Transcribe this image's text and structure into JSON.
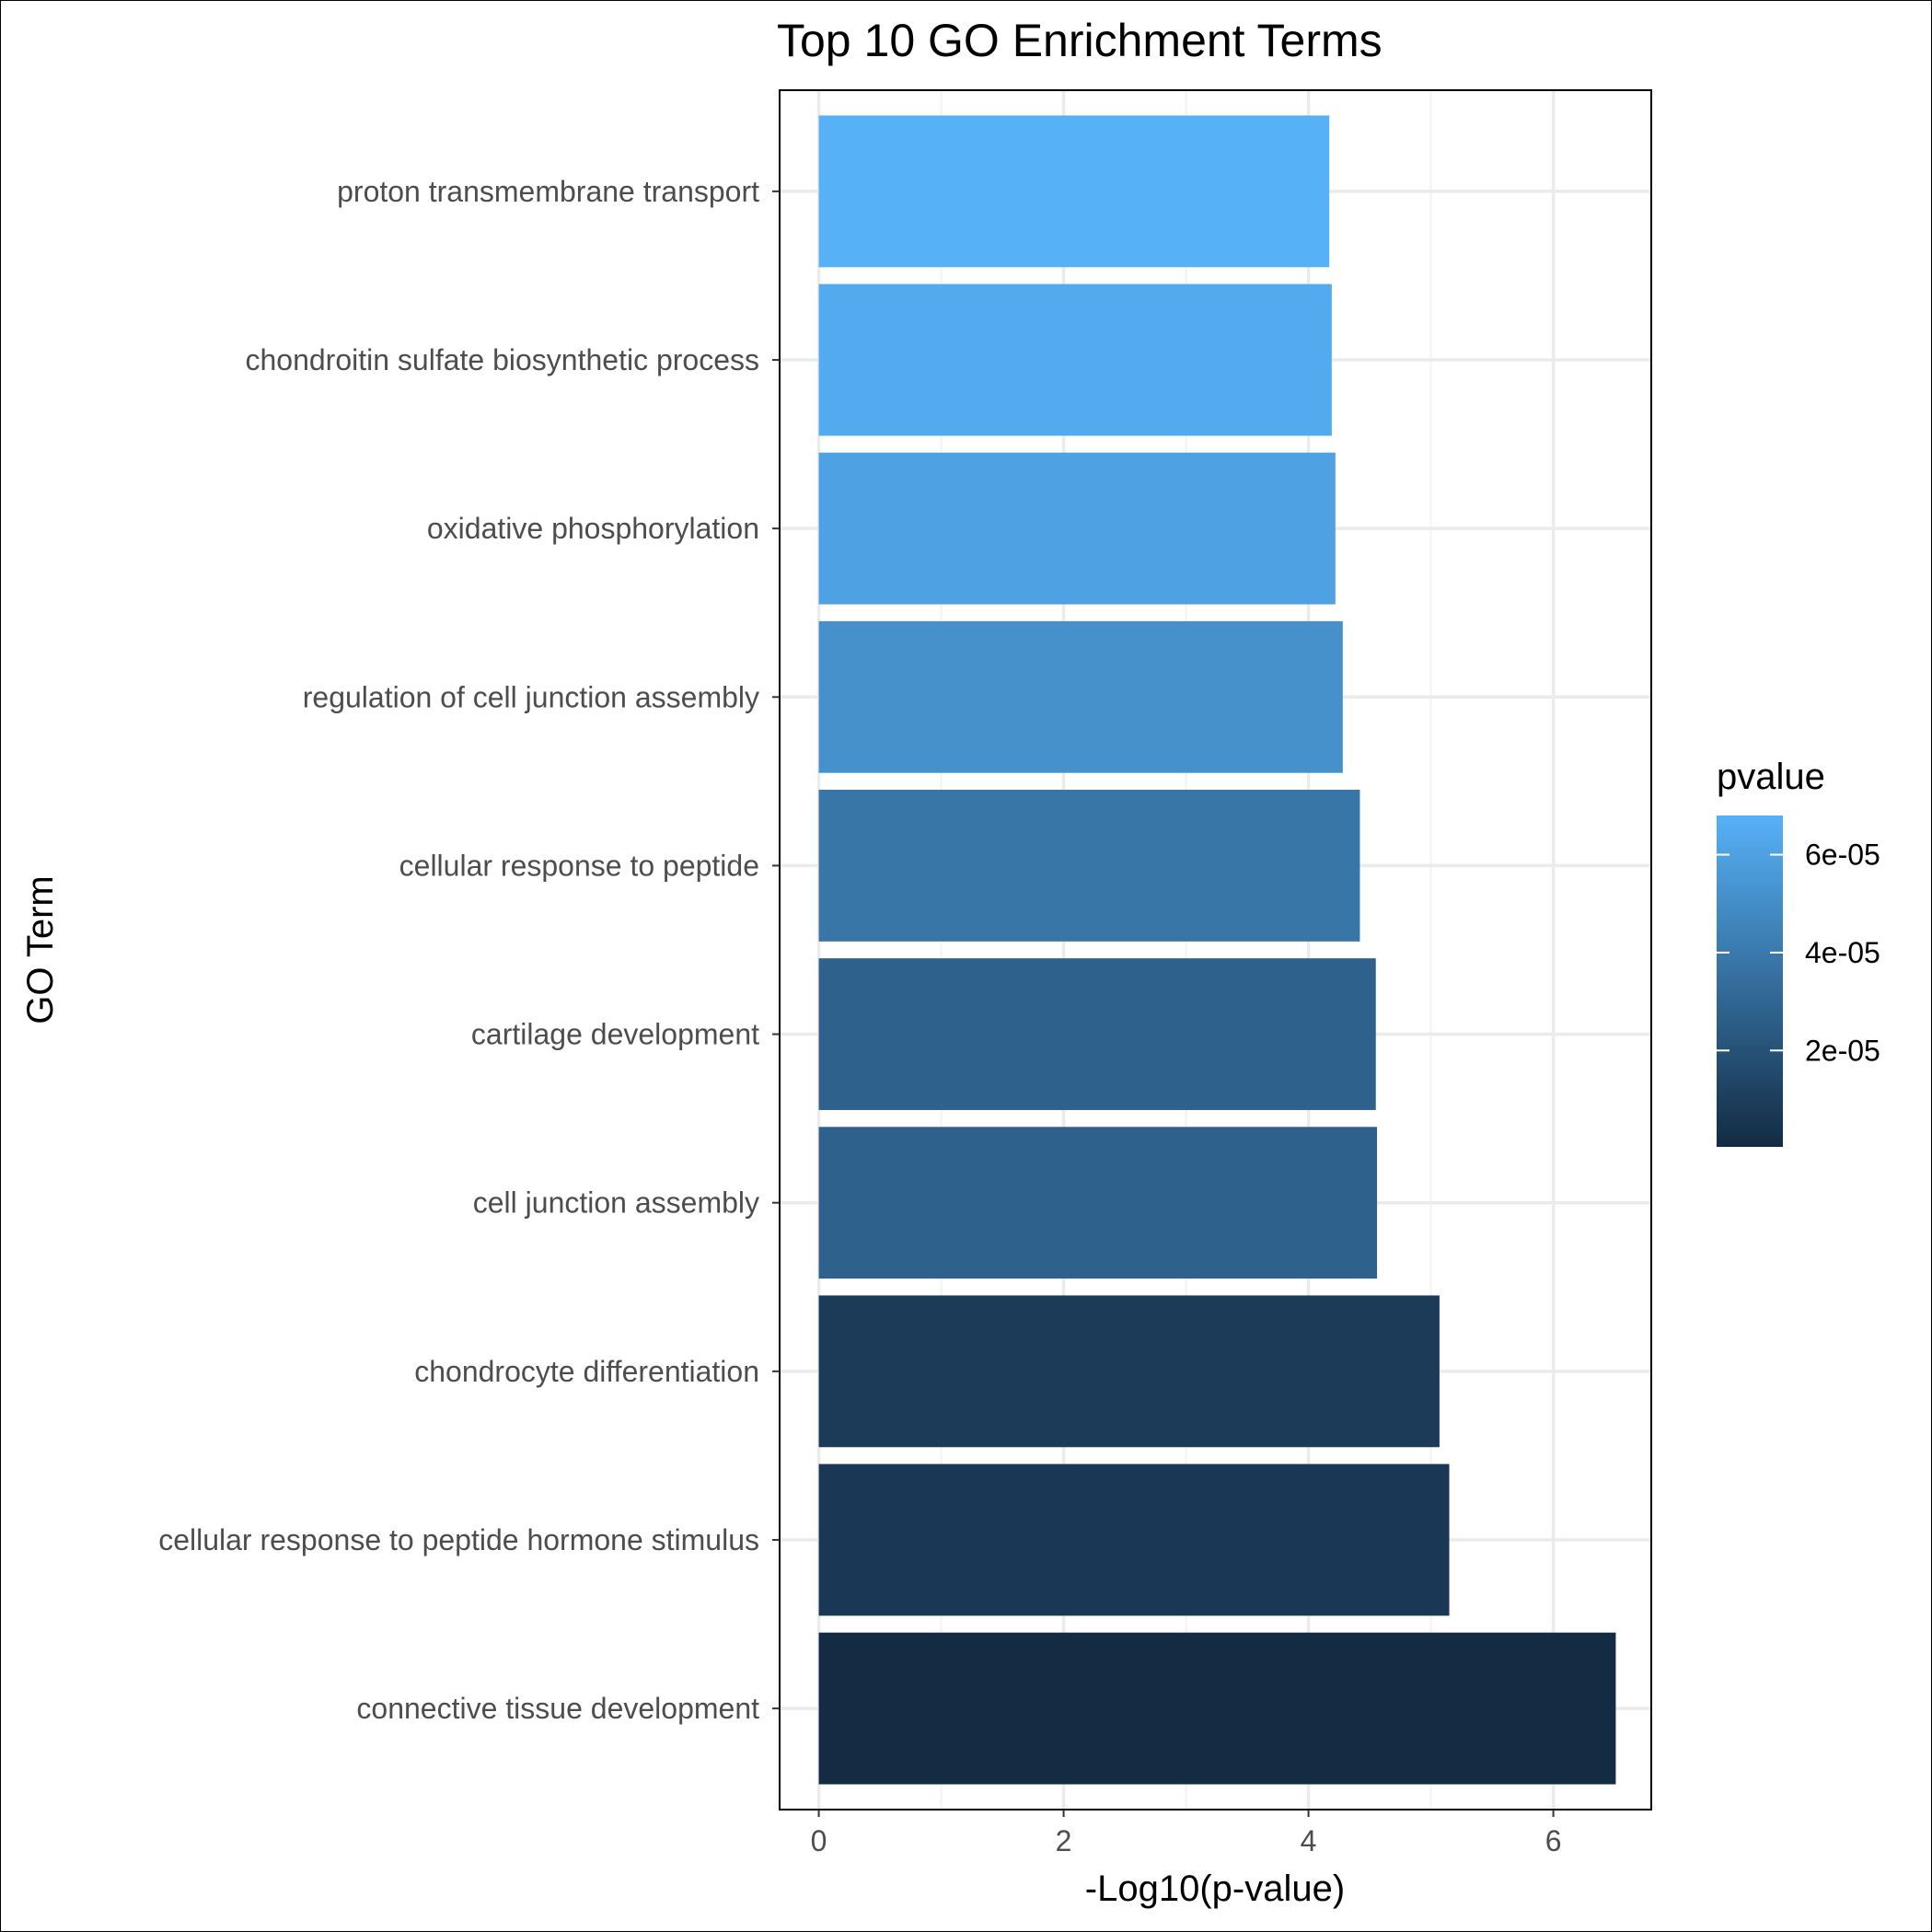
{
  "chart_data": {
    "type": "bar",
    "orientation": "horizontal",
    "title": "Top 10 GO Enrichment Terms",
    "xlabel": "-Log10(p-value)",
    "ylabel": "GO Term",
    "xlim": [
      -0.32,
      6.8
    ],
    "x_ticks": [
      0,
      2,
      4,
      6
    ],
    "grid": true,
    "categories": [
      "proton transmembrane transport",
      "chondroitin sulfate biosynthetic process",
      "oxidative phosphorylation",
      "regulation of cell junction assembly",
      "cellular response to peptide",
      "cartilage development",
      "cell junction assembly",
      "chondrocyte differentiation",
      "cellular response to peptide hormone stimulus",
      "connective tissue development"
    ],
    "values": [
      4.17,
      4.19,
      4.22,
      4.28,
      4.42,
      4.55,
      4.56,
      5.07,
      5.15,
      6.51
    ],
    "pvalues": [
      6.8e-05,
      6.5e-05,
      6e-05,
      5.2e-05,
      3.8e-05,
      2.8e-05,
      2.75e-05,
      8.5e-06,
      7.1e-06,
      3.1e-07
    ],
    "legend": {
      "title": "pvalue",
      "position": "right",
      "type": "colorbar",
      "range": [
        3.1e-07,
        6.8e-05
      ],
      "ticks": [
        2e-05,
        4e-05,
        6e-05
      ],
      "tick_labels": [
        "2e-05",
        "4e-05",
        "6e-05"
      ],
      "low_color": "#132B43",
      "high_color": "#56B1F7"
    }
  }
}
